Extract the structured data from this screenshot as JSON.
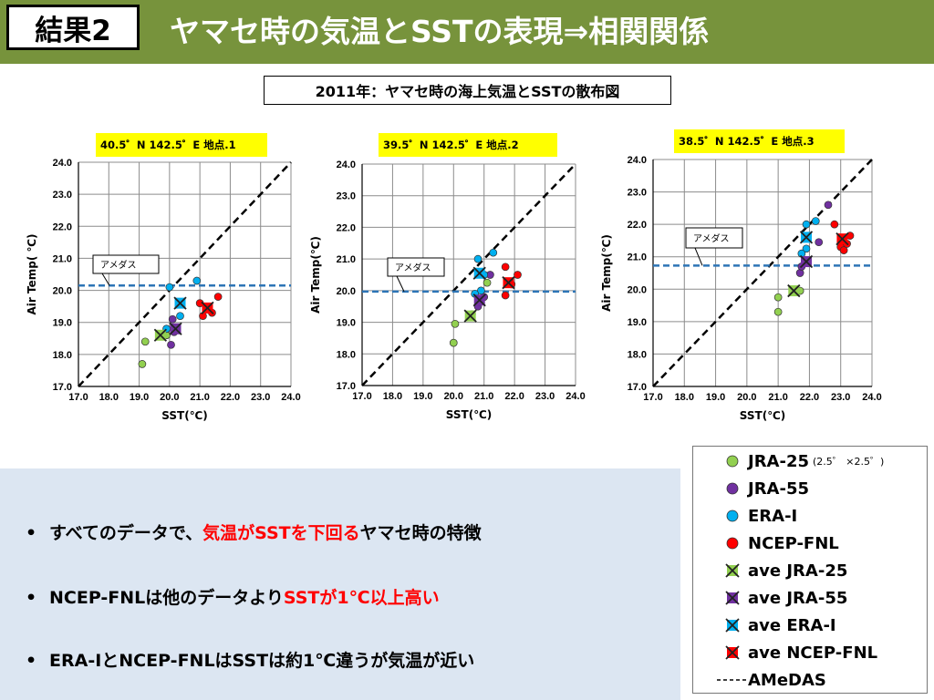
{
  "header": {
    "result_label": "結果2",
    "title": "ヤマセ時の気温とSSTの表現⇒相関関係"
  },
  "plot_title": "2011年：ヤマセ時の海上気温とSSTの散布図",
  "colors": {
    "header_bg": "#77933c",
    "jra25": "#92d050",
    "jra55": "#7030a0",
    "erai": "#00b0f0",
    "ncep": "#ff0000",
    "amedas": "#2e75b6",
    "title_bg": "#ffff00"
  },
  "chart_data": [
    {
      "type": "scatter",
      "title": "40.5゜N  142.5゜E  地点.1",
      "xlabel": "SST(℃)",
      "ylabel": "Air Temp( ℃)",
      "xlim": [
        17.0,
        24.0
      ],
      "ylim": [
        17.0,
        24.0
      ],
      "xticks": [
        "17.0",
        "18.0",
        "19.0",
        "20.0",
        "21.0",
        "22.0",
        "23.0",
        "24.0"
      ],
      "yticks": [
        "17.0",
        "18.0",
        "19.0",
        "20.0",
        "21.0",
        "22.0",
        "23.0",
        "24.0"
      ],
      "grid": true,
      "amedas": 20.15,
      "amedas_label": "アメダス",
      "series": [
        {
          "name": "JRA-25",
          "points": [
            [
              19.2,
              18.4
            ],
            [
              19.1,
              17.7
            ],
            [
              19.7,
              18.6
            ],
            [
              19.9,
              18.6
            ]
          ]
        },
        {
          "name": "JRA-55",
          "points": [
            [
              20.1,
              19.1
            ],
            [
              20.05,
              18.3
            ],
            [
              20.15,
              18.7
            ],
            [
              20.4,
              19.6
            ]
          ]
        },
        {
          "name": "ERA-I",
          "points": [
            [
              20.0,
              20.1
            ],
            [
              20.9,
              20.3
            ],
            [
              20.4,
              19.6
            ],
            [
              20.35,
              19.2
            ],
            [
              19.9,
              18.8
            ]
          ]
        },
        {
          "name": "NCEP-FNL",
          "points": [
            [
              21.0,
              19.6
            ],
            [
              21.6,
              19.8
            ],
            [
              21.3,
              19.4
            ],
            [
              21.4,
              19.3
            ],
            [
              21.1,
              19.2
            ]
          ]
        }
      ],
      "averages": [
        {
          "name": "ave JRA-25",
          "x": 19.7,
          "y": 18.6
        },
        {
          "name": "ave JRA-55",
          "x": 20.2,
          "y": 18.8
        },
        {
          "name": "ave ERA-I",
          "x": 20.35,
          "y": 19.6
        },
        {
          "name": "ave NCEP-FNL",
          "x": 21.25,
          "y": 19.45
        }
      ]
    },
    {
      "type": "scatter",
      "title": "39.5゜N  142.5゜E     地点.2",
      "xlabel": "SST(℃)",
      "ylabel": "Air Temp(℃)",
      "xlim": [
        17.0,
        24.0
      ],
      "ylim": [
        17.0,
        24.0
      ],
      "xticks": [
        "17.0",
        "18.0",
        "19.0",
        "20.0",
        "21.0",
        "22.0",
        "23.0",
        "24.0"
      ],
      "yticks": [
        "17.0",
        "18.0",
        "19.0",
        "20.0",
        "21.0",
        "22.0",
        "23.0",
        "24.0"
      ],
      "grid": true,
      "amedas": 19.97,
      "amedas_label": "アメダス",
      "series": [
        {
          "name": "JRA-25",
          "points": [
            [
              20.0,
              18.35
            ],
            [
              20.05,
              18.95
            ],
            [
              20.6,
              19.25
            ],
            [
              21.1,
              20.25
            ],
            [
              20.55,
              19.2
            ]
          ]
        },
        {
          "name": "JRA-55",
          "points": [
            [
              20.8,
              19.5
            ],
            [
              21.0,
              19.8
            ],
            [
              21.2,
              20.5
            ],
            [
              20.85,
              19.65
            ]
          ]
        },
        {
          "name": "ERA-I",
          "points": [
            [
              20.8,
              21.0
            ],
            [
              21.3,
              21.2
            ],
            [
              20.9,
              20.0
            ],
            [
              20.7,
              19.9
            ],
            [
              21.0,
              20.5
            ]
          ]
        },
        {
          "name": "NCEP-FNL",
          "points": [
            [
              21.7,
              20.75
            ],
            [
              22.1,
              20.5
            ],
            [
              21.7,
              19.85
            ],
            [
              21.9,
              20.2
            ]
          ]
        }
      ],
      "averages": [
        {
          "name": "ave JRA-25",
          "x": 20.55,
          "y": 19.2
        },
        {
          "name": "ave JRA-55",
          "x": 20.85,
          "y": 19.7
        },
        {
          "name": "ave ERA-I",
          "x": 20.85,
          "y": 20.55
        },
        {
          "name": "ave NCEP-FNL",
          "x": 21.8,
          "y": 20.25
        }
      ]
    },
    {
      "type": "scatter",
      "title": "38.5゜N  142.5゜E  地点.3",
      "xlabel": "SST(℃)",
      "ylabel": "Air Temp(℃)",
      "xlim": [
        17.0,
        24.0
      ],
      "ylim": [
        17.0,
        24.0
      ],
      "xticks": [
        "17.0",
        "18.0",
        "19.0",
        "20.0",
        "21.0",
        "22.0",
        "23.0",
        "24.0"
      ],
      "yticks": [
        "17.0",
        "18.0",
        "19.0",
        "20.0",
        "21.0",
        "22.0",
        "23.0",
        "24.0"
      ],
      "grid": true,
      "amedas": 20.73,
      "amedas_label": "アメダス",
      "series": [
        {
          "name": "JRA-25",
          "points": [
            [
              21.0,
              19.75
            ],
            [
              21.0,
              19.3
            ],
            [
              21.7,
              19.95
            ],
            [
              21.5,
              19.95
            ]
          ]
        },
        {
          "name": "JRA-55",
          "points": [
            [
              22.6,
              22.6
            ],
            [
              22.3,
              21.45
            ],
            [
              21.7,
              20.5
            ],
            [
              21.75,
              20.7
            ]
          ]
        },
        {
          "name": "ERA-I",
          "points": [
            [
              21.9,
              22.0
            ],
            [
              22.2,
              22.1
            ],
            [
              21.9,
              21.25
            ],
            [
              21.75,
              21.1
            ]
          ]
        },
        {
          "name": "NCEP-FNL",
          "points": [
            [
              22.8,
              22.0
            ],
            [
              23.3,
              21.65
            ],
            [
              23.0,
              21.3
            ],
            [
              23.1,
              21.2
            ],
            [
              23.2,
              21.4
            ]
          ]
        }
      ],
      "averages": [
        {
          "name": "ave JRA-25",
          "x": 21.5,
          "y": 19.95
        },
        {
          "name": "ave JRA-55",
          "x": 21.9,
          "y": 20.85
        },
        {
          "name": "ave ERA-I",
          "x": 21.9,
          "y": 21.6
        },
        {
          "name": "ave NCEP-FNL",
          "x": 23.05,
          "y": 21.55
        }
      ]
    }
  ],
  "bullets": [
    {
      "pre": "すべてのデータで、",
      "red": "気温がSSTを下回る",
      "post": "ヤマセ時の特徴"
    },
    {
      "pre": "NCEP-FNLは他のデータより",
      "red": "SSTが1℃以上高い",
      "post": ""
    },
    {
      "pre": "ERA-IとNCEP-FNLはSSTは約1℃違うが気温が近い",
      "red": "",
      "post": ""
    }
  ],
  "legend": {
    "items": [
      {
        "label": "JRA-25",
        "marker": "circle",
        "color": "#92d050",
        "note": "(2.5゜ ×2.5゜)"
      },
      {
        "label": "JRA-55",
        "marker": "circle",
        "color": "#7030a0"
      },
      {
        "label": "ERA-I",
        "marker": "circle",
        "color": "#00b0f0"
      },
      {
        "label": "NCEP-FNL",
        "marker": "circle",
        "color": "#ff0000"
      },
      {
        "label": "ave JRA-25",
        "marker": "xbox",
        "color": "#92d050"
      },
      {
        "label": "ave JRA-55",
        "marker": "xbox",
        "color": "#7030a0"
      },
      {
        "label": "ave ERA-I",
        "marker": "xbox",
        "color": "#00b0f0"
      },
      {
        "label": "ave NCEP-FNL",
        "marker": "xbox",
        "color": "#ff0000"
      },
      {
        "label": "AMeDAS",
        "marker": "dash",
        "color": "#000000"
      }
    ]
  }
}
